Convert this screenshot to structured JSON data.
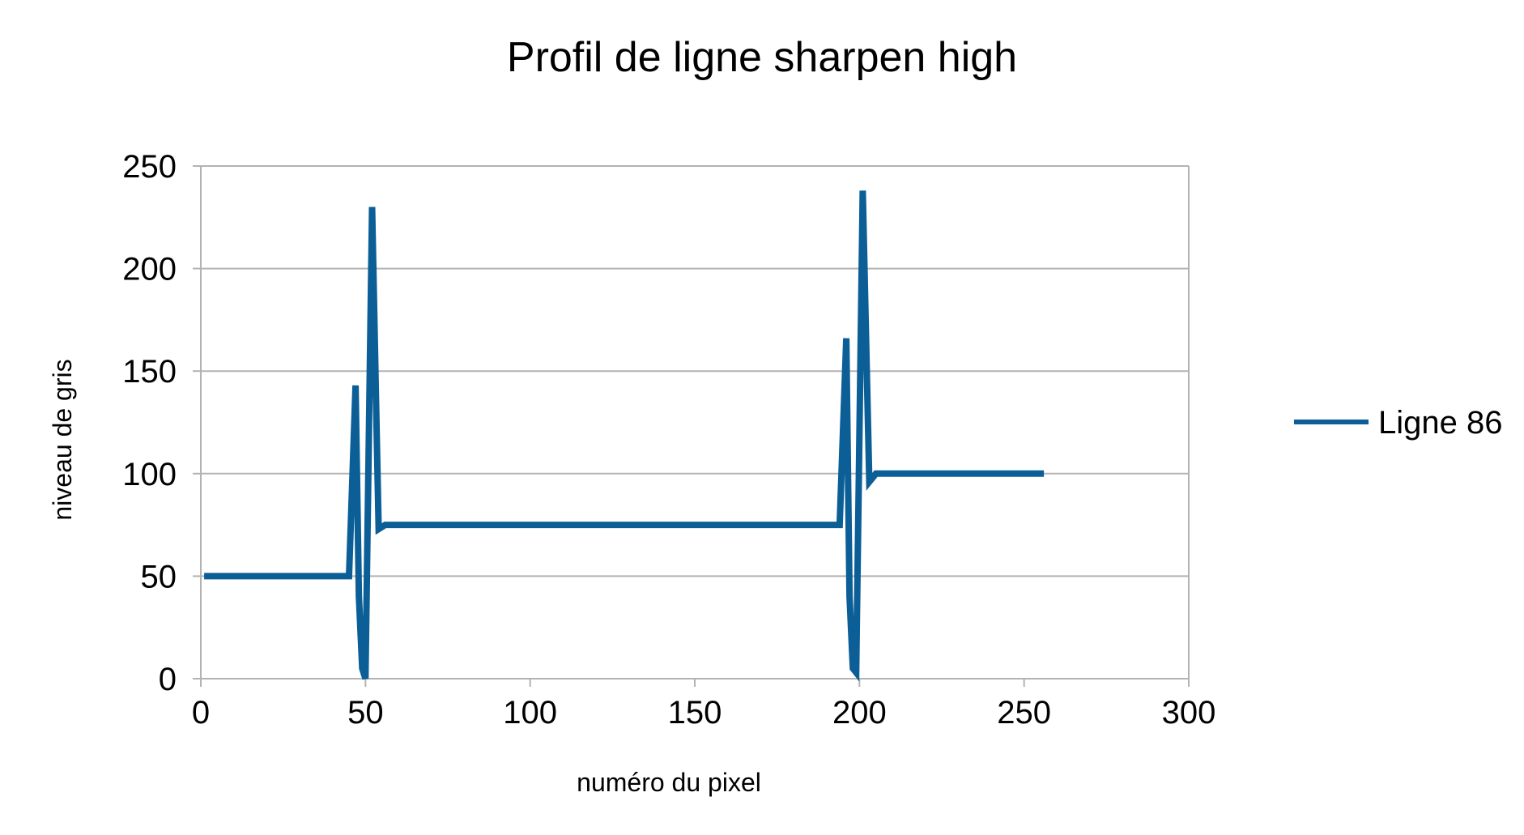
{
  "chart_data": {
    "type": "line",
    "title": "Profil de ligne sharpen high",
    "xlabel": "numéro du pixel",
    "ylabel": "niveau de gris",
    "xlim": [
      0,
      300
    ],
    "ylim": [
      0,
      250
    ],
    "x_ticks": [
      "0",
      "50",
      "100",
      "150",
      "200",
      "250",
      "300"
    ],
    "y_ticks": [
      "0",
      "50",
      "100",
      "150",
      "200",
      "250"
    ],
    "grid": true,
    "legend_position": "right",
    "series": [
      {
        "name": "Ligne 86",
        "color": "#0b5e96",
        "x": [
          1,
          45,
          47,
          48,
          49,
          50,
          52,
          54,
          56,
          58,
          194,
          196,
          197,
          198,
          199,
          201,
          203,
          205,
          207,
          256
        ],
        "y": [
          50,
          50,
          143,
          40,
          5,
          0,
          230,
          73,
          75,
          75,
          75,
          166,
          40,
          5,
          3,
          238,
          96,
          100,
          100,
          100
        ]
      }
    ]
  }
}
